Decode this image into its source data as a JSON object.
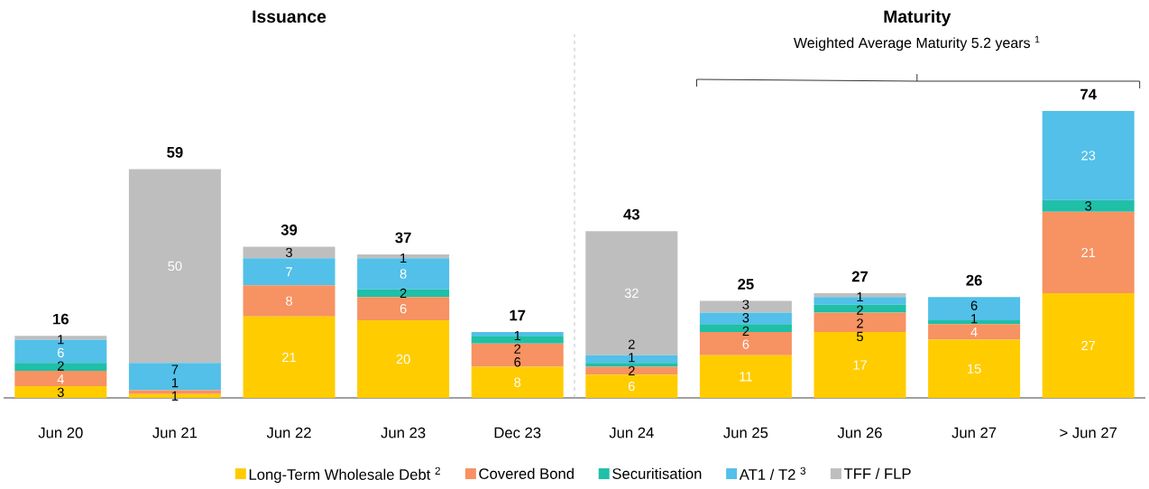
{
  "chart_data": {
    "type": "bar",
    "stacked": true,
    "tick_labels": "x",
    "grid": false,
    "legend": "bottom",
    "categories": [
      "Jun 20",
      "Jun 21",
      "Jun 22",
      "Jun 23",
      "Dec 23",
      "Jun 24",
      "Jun 25",
      "Jun 26",
      "Jun 27",
      "> Jun 27"
    ],
    "series": [
      {
        "name": "Long-Term Wholesale Debt $^{2}$",
        "color": "#ffcc00",
        "values": [
          3,
          1,
          21,
          20,
          8,
          6,
          11,
          17,
          15,
          27
        ],
        "value_labels": [
          "3",
          "1",
          "21",
          "20",
          "8",
          "6",
          "11",
          "17",
          "15",
          "27"
        ]
      },
      {
        "name": "Covered Bond",
        "color": "#f79262",
        "values": [
          4,
          1,
          8,
          6,
          6,
          2,
          6,
          5,
          4,
          21
        ],
        "value_labels": [
          "4",
          "1",
          "8",
          "6",
          "6",
          "2",
          "6",
          "5",
          "4",
          "21"
        ]
      },
      {
        "name": "Securitisation",
        "color": "#1fbfa8",
        "values": [
          2,
          0,
          0,
          2,
          2,
          1,
          2,
          2,
          1,
          3
        ],
        "value_labels": [
          "2",
          null,
          null,
          "2",
          "2",
          "1",
          "2",
          "2",
          "1",
          "3"
        ]
      },
      {
        "name": "AT1 / T2 $^{3}$",
        "color": "#52c0e8",
        "values": [
          6,
          7,
          7,
          8,
          1,
          2,
          3,
          2,
          6,
          23
        ],
        "value_labels": [
          "6",
          "7",
          "7",
          "8",
          "1",
          "2",
          "3",
          "2",
          "6",
          "23"
        ]
      },
      {
        "name": "TFF / FLP",
        "color": "#bebebe",
        "values": [
          1,
          50,
          3,
          1,
          0,
          32,
          3,
          1,
          0,
          0
        ],
        "value_labels": [
          "1",
          "50",
          "3",
          "1",
          null,
          "32",
          "3",
          "1",
          null,
          null
        ]
      }
    ],
    "totals": [
      "16",
      "59",
      "39",
      "37",
      "17",
      "43",
      "25",
      "27",
      "26",
      "74"
    ],
    "annotations": [
      "Issuance",
      "Maturity",
      "Weighted Average Maturity 5.2 years $^{1}$"
    ]
  }
}
